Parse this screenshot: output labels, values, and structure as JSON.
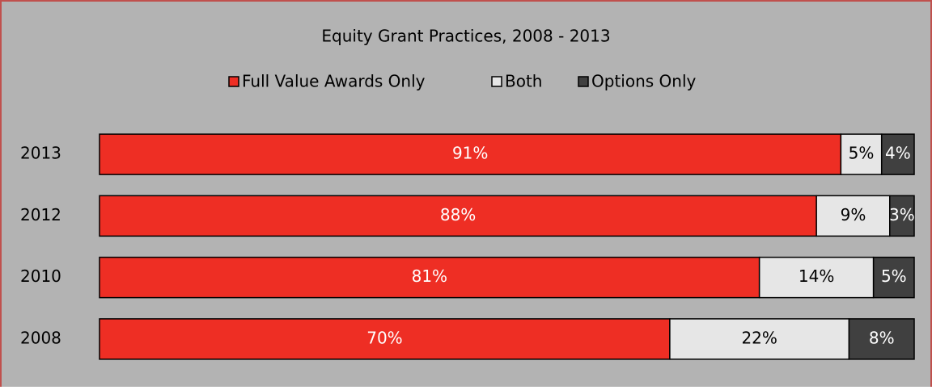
{
  "chart_data": {
    "type": "stacked-bar-horizontal",
    "title": "Equity Grant Practices, 2008 - 2013",
    "categories": [
      "2013",
      "2012",
      "2010",
      "2008"
    ],
    "series": [
      {
        "name": "Full Value Awards Only",
        "color": "#ee2e24",
        "values": [
          91,
          88,
          81,
          70
        ],
        "value_labels": [
          "91%",
          "88%",
          "81%",
          "70%"
        ]
      },
      {
        "name": "Both",
        "color": "#e6e6e6",
        "values": [
          5,
          9,
          14,
          22
        ],
        "value_labels": [
          "5%",
          "9%",
          "14%",
          "22%"
        ]
      },
      {
        "name": "Options Only",
        "color": "#404040",
        "values": [
          4,
          3,
          5,
          8
        ],
        "value_labels": [
          "4%",
          "3%",
          "5%",
          "8%"
        ]
      }
    ],
    "xlim": [
      0,
      100
    ],
    "legend": "top"
  }
}
